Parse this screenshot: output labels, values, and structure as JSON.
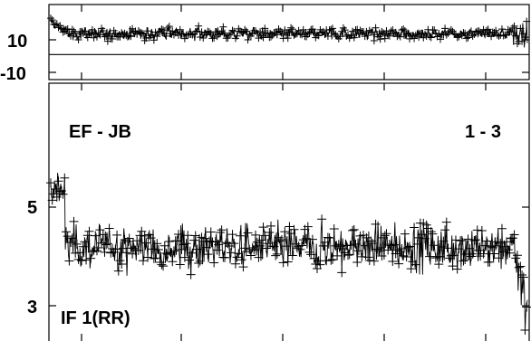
{
  "chart_data": [
    {
      "type": "scatter",
      "panel": "phase",
      "title": "",
      "xlabel": "",
      "ylabel": "",
      "ylim": [
        -14,
        22
      ],
      "yticks": [
        {
          "value": 10,
          "label": "10"
        },
        {
          "value": -10,
          "label": "-10"
        }
      ],
      "reference_line": -2,
      "series": [
        {
          "values_summary": {
            "center": 8,
            "spread": 5
          }
        }
      ]
    },
    {
      "type": "scatter",
      "panel": "amplitude",
      "title": "",
      "xlabel": "",
      "ylabel": "",
      "ylim": [
        2.7,
        10.5
      ],
      "yscale": "log",
      "yticks": [
        {
          "value": 5,
          "label": "5"
        },
        {
          "value": 3,
          "label": "3"
        }
      ],
      "annotations": {
        "baseline": "EF - JB",
        "channels": "1 - 3",
        "if_label": "IF 1(RR)"
      },
      "series": [
        {
          "values_summary": {
            "center": 4.5,
            "spread": 0.45,
            "start": 6.0,
            "end_drop": 3.1
          }
        }
      ]
    }
  ]
}
